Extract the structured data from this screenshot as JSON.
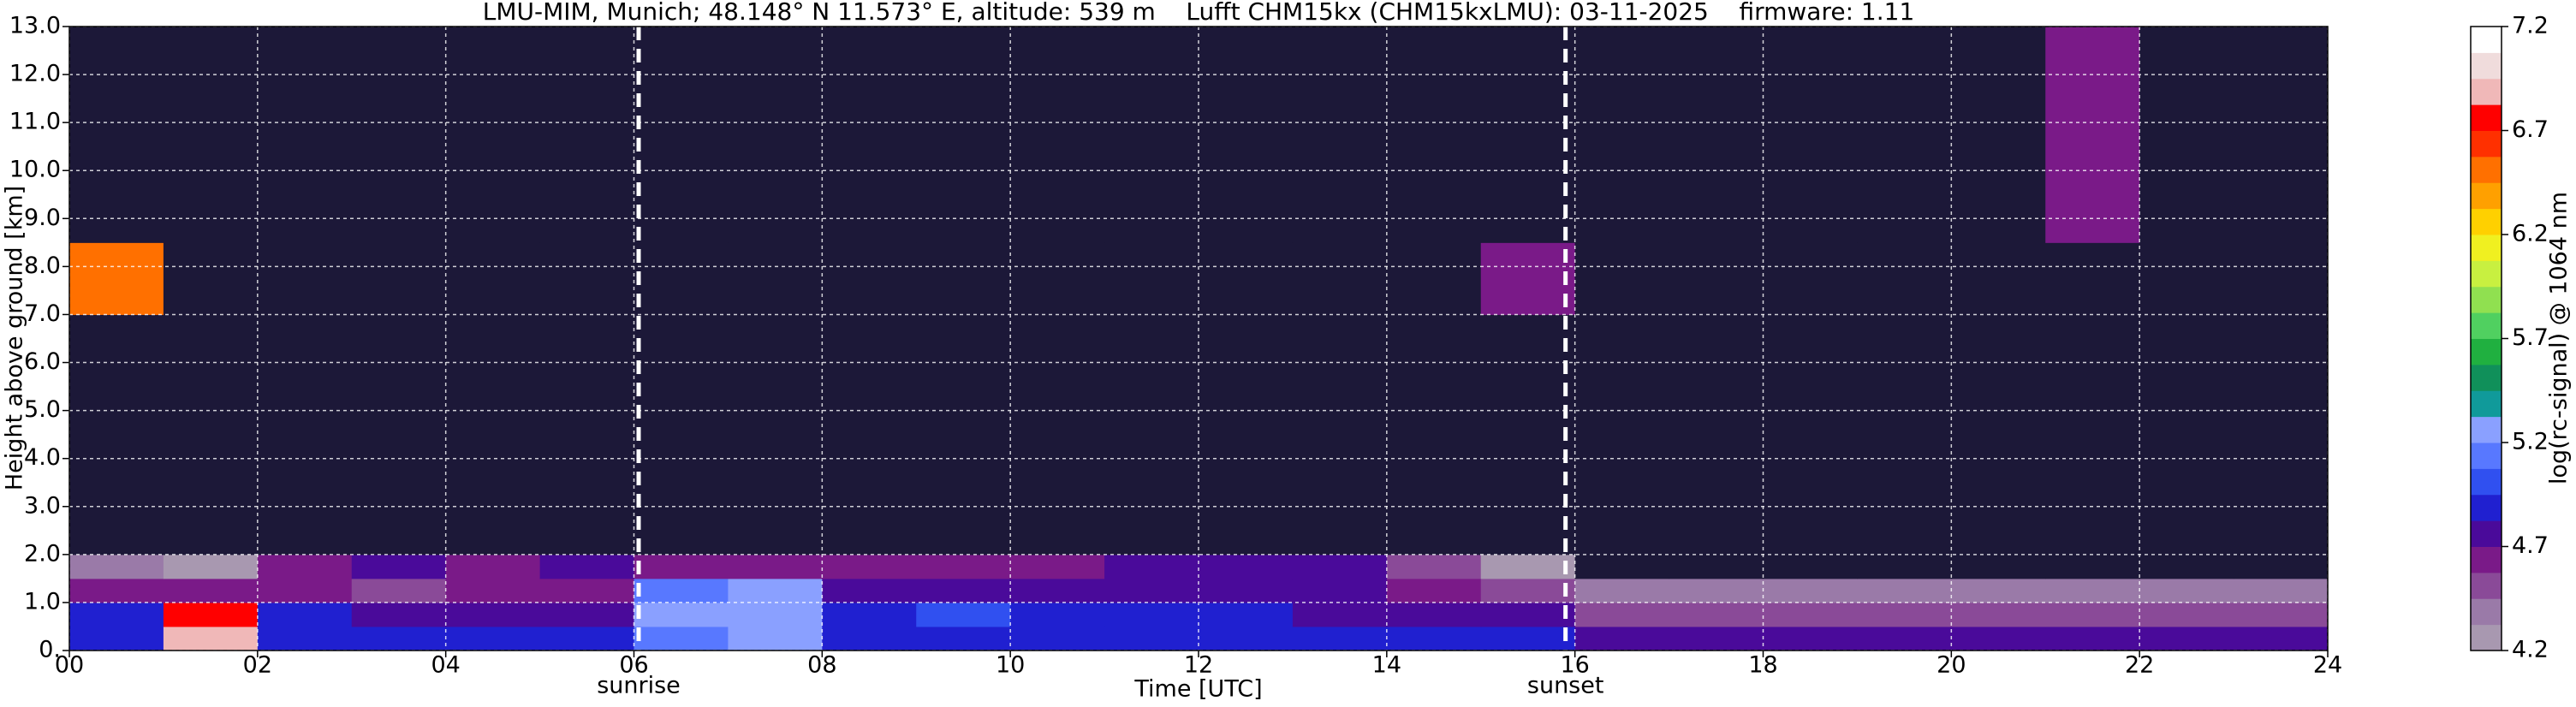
{
  "chart_data": {
    "type": "heatmap",
    "title": "LMU-MIM, Munich; 48.148° N 11.573° E, altitude: 539 m    Lufft CHM15kx (CHM15kxLMU): 03-11-2025    firmware: 1.11",
    "xlabel": "Time [UTC]",
    "ylabel": "Height above ground [km]",
    "colorbar_label": "log(rc-signal) @ 1064 nm",
    "xlim": [
      0,
      24
    ],
    "ylim": [
      0,
      13
    ],
    "xticks": [
      {
        "value": 0,
        "label": "00"
      },
      {
        "value": 2,
        "label": "02"
      },
      {
        "value": 4,
        "label": "04"
      },
      {
        "value": 6,
        "label": "06"
      },
      {
        "value": 8,
        "label": "08"
      },
      {
        "value": 10,
        "label": "10"
      },
      {
        "value": 12,
        "label": "12"
      },
      {
        "value": 14,
        "label": "14"
      },
      {
        "value": 16,
        "label": "16"
      },
      {
        "value": 18,
        "label": "18"
      },
      {
        "value": 20,
        "label": "20"
      },
      {
        "value": 22,
        "label": "22"
      },
      {
        "value": 24,
        "label": "24"
      }
    ],
    "yticks": [
      {
        "value": 0,
        "label": "0."
      },
      {
        "value": 1,
        "label": "1.0"
      },
      {
        "value": 2,
        "label": "2.0"
      },
      {
        "value": 3,
        "label": "3.0"
      },
      {
        "value": 4,
        "label": "4.0"
      },
      {
        "value": 5,
        "label": "5.0"
      },
      {
        "value": 6,
        "label": "6.0"
      },
      {
        "value": 7,
        "label": "7.0"
      },
      {
        "value": 8,
        "label": "8.0"
      },
      {
        "value": 9,
        "label": "9.0"
      },
      {
        "value": 10,
        "label": "10.0"
      },
      {
        "value": 11,
        "label": "11.0"
      },
      {
        "value": 12,
        "label": "12.0"
      },
      {
        "value": 13,
        "label": "13.0"
      }
    ],
    "clim": [
      4.2,
      7.2
    ],
    "cticks": [
      4.2,
      4.7,
      5.2,
      5.7,
      6.2,
      6.7,
      7.2
    ],
    "grid": true,
    "colormap": [
      "#a898b0",
      "#9a7aa8",
      "#8a4a98",
      "#7a1a88",
      "#4a0a9a",
      "#2020d0",
      "#3050f0",
      "#5878ff",
      "#8aa0ff",
      "#109a9a",
      "#10905a",
      "#20b040",
      "#50d060",
      "#90e050",
      "#c8f040",
      "#f0f020",
      "#ffd000",
      "#ffa000",
      "#ff7000",
      "#ff3000",
      "#ff0000",
      "#f0b8b8",
      "#f0dcdc",
      "#ffffff"
    ],
    "under_color": "#1c1838",
    "annotations": [
      {
        "text": "sunrise",
        "x": 6.05
      },
      {
        "text": "sunset",
        "x": 15.9
      }
    ],
    "x": [
      0,
      1,
      2,
      3,
      4,
      5,
      6,
      7,
      8,
      9,
      10,
      11,
      12,
      13,
      14,
      15,
      16,
      17,
      18,
      19,
      20,
      21,
      22,
      23,
      24
    ],
    "y": [
      0,
      0.5,
      1.0,
      1.5,
      2.0,
      7.0,
      8.5,
      13
    ],
    "z": [
      [
        4.9,
        6.9,
        4.9,
        4.9,
        4.9,
        4.9,
        5.1,
        5.3,
        4.9,
        4.9,
        4.9,
        4.9,
        4.9,
        4.9,
        4.9,
        4.85,
        4.8,
        4.8,
        4.8,
        4.8,
        4.8,
        4.8,
        4.8,
        4.8
      ],
      [
        4.85,
        6.7,
        4.85,
        4.8,
        4.75,
        4.8,
        5.2,
        5.3,
        4.9,
        5.0,
        4.85,
        4.9,
        4.85,
        4.8,
        4.8,
        4.75,
        4.45,
        4.45,
        4.45,
        4.45,
        4.45,
        4.45,
        4.45,
        4.45
      ],
      [
        4.6,
        4.6,
        4.6,
        4.55,
        4.6,
        4.65,
        5.1,
        5.2,
        4.8,
        4.75,
        4.8,
        4.7,
        4.7,
        4.7,
        4.6,
        4.5,
        4.35,
        4.35,
        4.35,
        4.35,
        4.35,
        4.35,
        4.35,
        4.35
      ],
      [
        4.4,
        4.3,
        4.6,
        4.7,
        4.6,
        4.7,
        4.6,
        4.6,
        4.6,
        4.6,
        4.6,
        4.7,
        4.7,
        4.7,
        4.5,
        4.3,
        4.1,
        4.1,
        4.1,
        4.1,
        4.1,
        4.1,
        4.1,
        4.1
      ],
      [
        4.1,
        4.1,
        4.1,
        4.1,
        4.1,
        4.1,
        4.1,
        4.1,
        4.1,
        4.1,
        4.1,
        4.1,
        4.1,
        4.1,
        4.1,
        4.1,
        4.1,
        4.1,
        4.1,
        4.1,
        4.1,
        4.1,
        4.1,
        4.1
      ],
      [
        6.5,
        4.1,
        4.1,
        4.1,
        4.1,
        4.1,
        4.1,
        4.1,
        4.1,
        4.1,
        4.1,
        4.1,
        4.1,
        4.1,
        4.1,
        4.6,
        4.1,
        4.1,
        4.1,
        4.1,
        4.1,
        4.1,
        4.1,
        4.1
      ],
      [
        4.1,
        4.1,
        4.1,
        4.1,
        4.1,
        4.1,
        4.1,
        4.1,
        4.1,
        4.1,
        4.1,
        4.1,
        4.1,
        4.1,
        4.1,
        4.1,
        4.1,
        4.1,
        4.1,
        4.1,
        4.1,
        4.6,
        4.1,
        4.1
      ]
    ]
  }
}
